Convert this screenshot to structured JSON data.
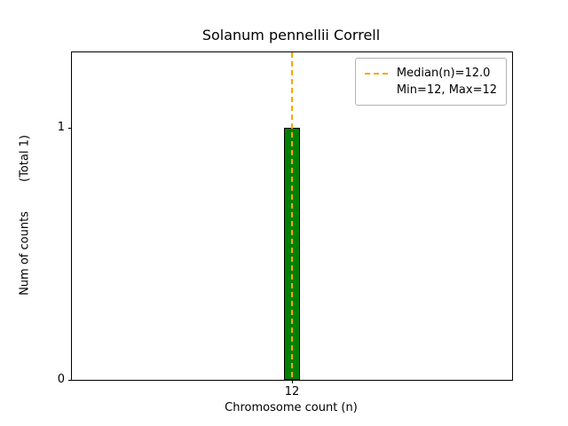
{
  "chart_data": {
    "type": "bar",
    "title": "Solanum pennellii Correll",
    "xlabel": "Chromosome count (n)",
    "ylabel": "Num of counts        (Total 1)",
    "categories": [
      12
    ],
    "values": [
      1
    ],
    "total_counts": 1,
    "bar_width": 0.8,
    "xlim": [
      1,
      23
    ],
    "ylim": [
      0,
      1.3
    ],
    "xticks": [
      12
    ],
    "yticks": [
      0,
      1
    ],
    "grid": false,
    "colors": {
      "bar_fill": "#008000",
      "bar_edge": "#000000",
      "median_line": "#ffa500",
      "axis": "#000000"
    },
    "median_line": {
      "x": 12,
      "style": "dashed"
    },
    "legend": {
      "position": "upper right",
      "entries": [
        "Median(n)=12.0",
        "Min=12, Max=12"
      ]
    }
  }
}
